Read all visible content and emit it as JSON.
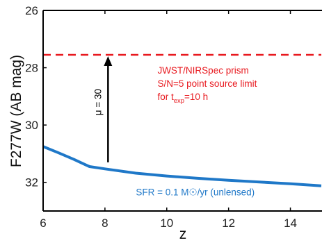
{
  "chart_data": {
    "type": "line",
    "xlabel": "z",
    "ylabel": "F277W (AB mag)",
    "xlim": [
      6,
      15
    ],
    "ylim": [
      33,
      26
    ],
    "y_inverted": true,
    "x_ticks": [
      6,
      8,
      10,
      12,
      14
    ],
    "y_ticks": [
      26,
      28,
      30,
      32
    ],
    "x_tick_labels": [
      "6",
      "8",
      "10",
      "12",
      "14"
    ],
    "y_tick_labels": [
      "26",
      "28",
      "30",
      "32"
    ],
    "grid": false,
    "series": [
      {
        "name": "SFR = 0.1 M☉/yr (unlensed)",
        "color": "#1f78c8",
        "x": [
          6.0,
          6.5,
          7.0,
          7.3,
          7.5,
          8.0,
          9.0,
          10.0,
          11.0,
          12.0,
          13.0,
          14.0,
          15.0
        ],
        "y": [
          30.75,
          30.97,
          31.2,
          31.35,
          31.45,
          31.53,
          31.68,
          31.78,
          31.86,
          31.93,
          31.99,
          32.05,
          32.12
        ]
      }
    ],
    "limit_line": {
      "y": 27.55,
      "color": "#e8191f",
      "style": "dashed",
      "label_lines": [
        "JWST/NIRSpec prism",
        "S/N=5 point source limit"
      ],
      "label_line3": {
        "prefix": "for t",
        "sub": "exp",
        "suffix": "=10 h"
      }
    },
    "arrow": {
      "x": 8.1,
      "y_from": 31.3,
      "y_to": 27.55,
      "label": "μ = 30",
      "color": "#000000"
    }
  }
}
